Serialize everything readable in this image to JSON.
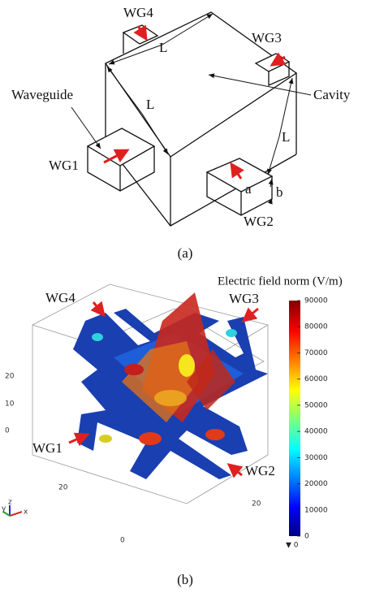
{
  "panel_a": {
    "labels": {
      "wg4": "WG4",
      "wg3": "WG3",
      "wg1": "WG1",
      "wg2": "WG2",
      "waveguide": "Waveguide",
      "cavity": "Cavity",
      "l_top": "L",
      "l_left": "L",
      "l_right": "L",
      "a": "a",
      "b": "b"
    },
    "caption": "(a)"
  },
  "panel_b": {
    "title": "Electric field norm (V/m)",
    "colorbar": {
      "ticks": [
        0,
        10000,
        20000,
        30000,
        40000,
        50000,
        60000,
        70000,
        80000,
        90000
      ],
      "min_label": "▼ 0"
    },
    "labels": {
      "wg4": "WG4",
      "wg3": "WG3",
      "wg1": "WG1",
      "wg2": "WG2"
    },
    "axis_ticks": [
      "20",
      "10",
      "0",
      "20",
      "20",
      "0"
    ],
    "triad": [
      "y",
      "z",
      "x"
    ],
    "caption": "(b)"
  }
}
